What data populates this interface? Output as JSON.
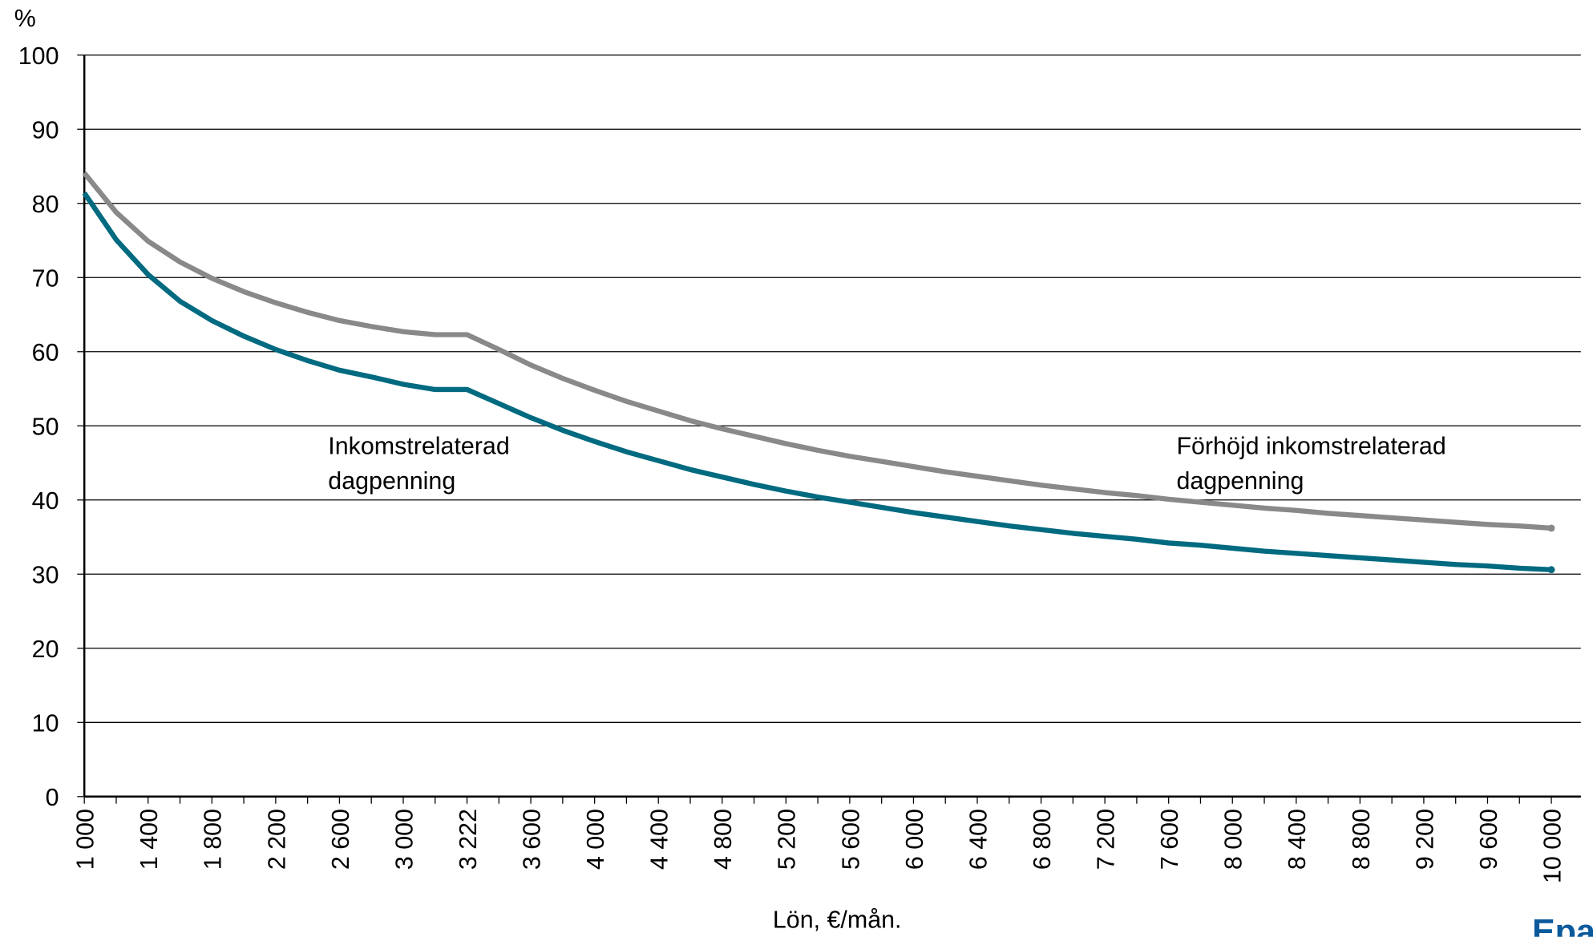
{
  "chart_data": {
    "type": "line",
    "y_label": "%",
    "x_label": "Lön, €/mån.",
    "categories": [
      "1 000",
      null,
      "1 400",
      null,
      "1 800",
      null,
      "2 200",
      null,
      "2 600",
      null,
      "3 000",
      null,
      "3 222",
      null,
      "3 600",
      null,
      "4 000",
      null,
      "4 400",
      null,
      "4 800",
      null,
      "5 200",
      null,
      "5 600",
      null,
      "6 000",
      null,
      "6 400",
      null,
      "6 800",
      null,
      "7 200",
      null,
      "7 600",
      null,
      "8 000",
      null,
      "8 400",
      null,
      "8 800",
      null,
      "9 200",
      null,
      "9 600",
      null,
      "10 000"
    ],
    "series": [
      {
        "name": "Förhöjd inkomstrelaterad dagpenning",
        "label_lines": [
          "Förhöjd inkomstrelaterad",
          "dagpenning"
        ],
        "color": "#898989",
        "values": [
          84.1,
          78.8,
          74.9,
          72.1,
          69.9,
          68.1,
          66.6,
          65.3,
          64.2,
          63.4,
          62.7,
          62.3,
          62.3,
          60.3,
          58.2,
          56.4,
          54.8,
          53.3,
          52.0,
          50.7,
          49.6,
          48.6,
          47.6,
          46.7,
          45.9,
          45.2,
          44.5,
          43.8,
          43.2,
          42.6,
          42.0,
          41.5,
          41.0,
          40.6,
          40.1,
          39.7,
          39.3,
          38.9,
          38.6,
          38.2,
          37.9,
          37.6,
          37.3,
          37.0,
          36.7,
          36.5,
          36.2
        ]
      },
      {
        "name": "Inkomstrelaterad dagpenning",
        "label_lines": [
          "Inkomstrelaterad",
          "dagpenning"
        ],
        "color": "#006a80",
        "values": [
          81.4,
          75.1,
          70.4,
          66.8,
          64.2,
          62.1,
          60.3,
          58.8,
          57.5,
          56.6,
          55.6,
          54.9,
          54.9,
          53.0,
          51.1,
          49.4,
          47.9,
          46.5,
          45.3,
          44.1,
          43.1,
          42.1,
          41.2,
          40.4,
          39.7,
          39.0,
          38.3,
          37.7,
          37.1,
          36.5,
          36.0,
          35.5,
          35.1,
          34.7,
          34.2,
          33.9,
          33.5,
          33.1,
          32.8,
          32.5,
          32.2,
          31.9,
          31.6,
          31.3,
          31.1,
          30.8,
          30.6
        ]
      }
    ],
    "ylim": [
      0,
      100
    ],
    "yticks": [
      0,
      10,
      20,
      30,
      40,
      50,
      60,
      70,
      80,
      90,
      100
    ],
    "grid": true,
    "logo": "Epa"
  }
}
